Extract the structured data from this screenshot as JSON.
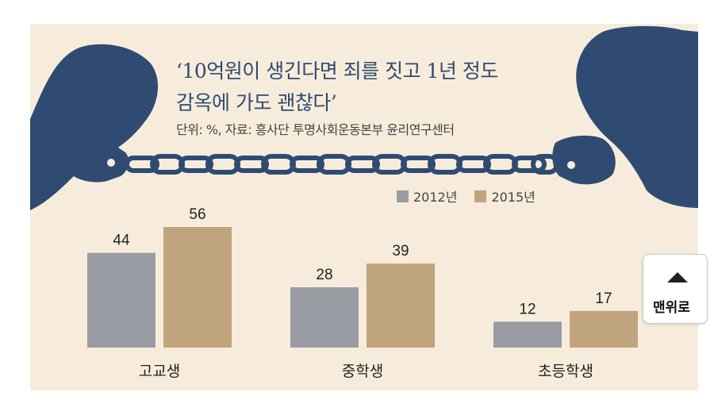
{
  "title_line1": "‘10억원이 생긴다면 죄를 짓고 1년 정도",
  "title_line2": "감옥에 가도 괜찮다’",
  "source": "단위: %, 자료: 흥사단 투명사회운동본부 윤리연구센터",
  "scroll_top_label": "맨위로",
  "colors": {
    "series_2012": "#9a9ca4",
    "series_2015": "#c0a47e",
    "panel_bg": "#f7ecdc",
    "title": "#2f4a72",
    "silhouette": "#2f4b72"
  },
  "chart_data": {
    "type": "bar",
    "categories": [
      "고교생",
      "중학생",
      "초등학생"
    ],
    "series": [
      {
        "name": "2012년",
        "values": [
          44,
          28,
          12
        ]
      },
      {
        "name": "2015년",
        "values": [
          56,
          39,
          17
        ]
      }
    ],
    "ylim": [
      0,
      56
    ],
    "legend": "top-right",
    "grid": false,
    "data_labels": true
  }
}
